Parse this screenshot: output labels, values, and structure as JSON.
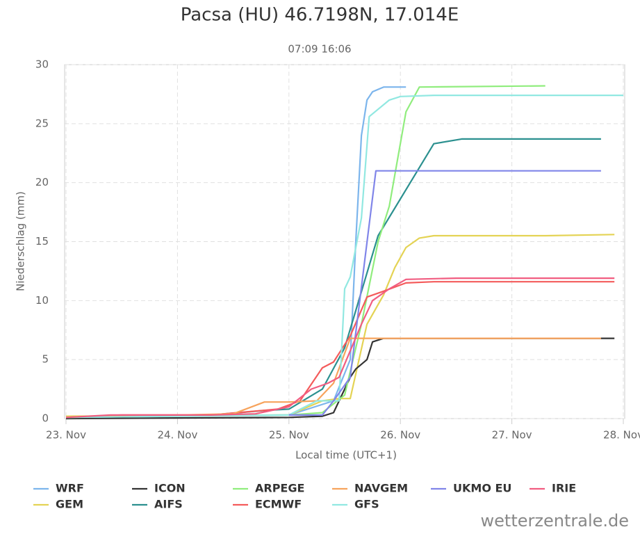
{
  "chart_data": {
    "type": "line",
    "title": "Pacsa (HU) 46.7198N, 17.014E",
    "subtitle": "07:09 16:06",
    "y_label": "Niederschlag (mm)",
    "x_label": "Local time (UTC+1)",
    "credit": "wetterzentrale.de",
    "xlim": [
      23,
      28
    ],
    "xticks": [
      {
        "value": 23,
        "label": "23. Nov"
      },
      {
        "value": 24,
        "label": "24. Nov"
      },
      {
        "value": 25,
        "label": "25. Nov"
      },
      {
        "value": 26,
        "label": "26. Nov"
      },
      {
        "value": 27,
        "label": "27. Nov"
      },
      {
        "value": 28,
        "label": "28. Nov"
      }
    ],
    "ylim": [
      0,
      30
    ],
    "yticks": [
      0,
      5,
      10,
      15,
      20,
      25,
      30
    ],
    "grid": true,
    "legend": "bottom",
    "series": [
      {
        "name": "WRF",
        "color": "#7cb5ec",
        "x": [
          23.0,
          23.3,
          25.0,
          25.4,
          25.55,
          25.6,
          25.65,
          25.7,
          25.75,
          25.85,
          26.05
        ],
        "values": [
          0,
          0.2,
          0.3,
          1.5,
          5,
          15,
          24,
          27,
          27.7,
          28.1,
          28.1
        ]
      },
      {
        "name": "GEM",
        "color": "#e4d354",
        "x": [
          23.0,
          25.0,
          25.3,
          25.45,
          25.55,
          25.7,
          25.85,
          25.95,
          26.05,
          26.17,
          26.3,
          27.3,
          27.92
        ],
        "values": [
          0.2,
          0.3,
          1.5,
          1.7,
          1.7,
          8,
          10.5,
          12.8,
          14.5,
          15.3,
          15.5,
          15.5,
          15.6
        ]
      },
      {
        "name": "ICON",
        "color": "#333333",
        "x": [
          23.0,
          25.0,
          25.3,
          25.4,
          25.45,
          25.55,
          25.6,
          25.7,
          25.75,
          25.85,
          26.5,
          27.92
        ],
        "values": [
          0,
          0.1,
          0.2,
          0.5,
          1.5,
          3.5,
          4.2,
          5,
          6.5,
          6.8,
          6.8,
          6.8
        ]
      },
      {
        "name": "AIFS",
        "color": "#2b908f",
        "x": [
          23.0,
          24.3,
          24.8,
          25.0,
          25.3,
          25.5,
          25.8,
          26.3,
          26.55,
          27.8
        ],
        "values": [
          0.1,
          0.3,
          0.7,
          0.8,
          2.5,
          6,
          15.5,
          23.3,
          23.7,
          23.7
        ]
      },
      {
        "name": "ARPEGE",
        "color": "#90ed7d",
        "x": [
          23.2,
          25.0,
          25.3,
          25.5,
          25.65,
          25.8,
          25.9,
          26.05,
          26.17,
          27.3
        ],
        "values": [
          0.2,
          0.3,
          0.5,
          2,
          8,
          15,
          18,
          26,
          28.1,
          28.2
        ]
      },
      {
        "name": "ECMWF",
        "color": "#f45b5b",
        "x": [
          23.0,
          23.5,
          24.3,
          24.9,
          25.1,
          25.3,
          25.4,
          25.55,
          25.7,
          25.85,
          26.05,
          26.3,
          27.92
        ],
        "values": [
          0.1,
          0.3,
          0.3,
          0.8,
          1.5,
          4.3,
          4.8,
          7,
          10.3,
          10.8,
          11.5,
          11.6,
          11.6
        ]
      },
      {
        "name": "NAVGEM",
        "color": "#f7a35c",
        "x": [
          23.0,
          24.5,
          24.78,
          25.0,
          25.25,
          25.4,
          25.55,
          26.0,
          27.8
        ],
        "values": [
          0.1,
          0.4,
          1.4,
          1.4,
          1.5,
          3,
          6.8,
          6.8,
          6.8
        ]
      },
      {
        "name": "GFS",
        "color": "#91e8e1",
        "x": [
          23.0,
          25.0,
          25.25,
          25.45,
          25.5,
          25.55,
          25.65,
          25.72,
          25.9,
          26.0,
          26.3,
          28.0
        ],
        "values": [
          0.1,
          0.3,
          1.5,
          1.5,
          11,
          12,
          17,
          25.6,
          27,
          27.3,
          27.4,
          27.4
        ]
      },
      {
        "name": "UKMO EU",
        "color": "#8085e9",
        "x": [
          25.0,
          25.3,
          25.4,
          25.55,
          25.78,
          26.5,
          27.8
        ],
        "values": [
          0.3,
          0.3,
          1.5,
          3.5,
          21,
          21,
          21
        ]
      },
      {
        "name": "IRIE",
        "color": "#f15c80",
        "x": [
          23.0,
          23.4,
          24.3,
          24.7,
          25.0,
          25.2,
          25.35,
          25.45,
          25.65,
          25.75,
          25.9,
          26.05,
          26.5,
          27.92
        ],
        "values": [
          0.1,
          0.3,
          0.3,
          0.4,
          1.0,
          2.5,
          3,
          3.5,
          8,
          10,
          11,
          11.8,
          11.9,
          11.9
        ]
      }
    ]
  }
}
